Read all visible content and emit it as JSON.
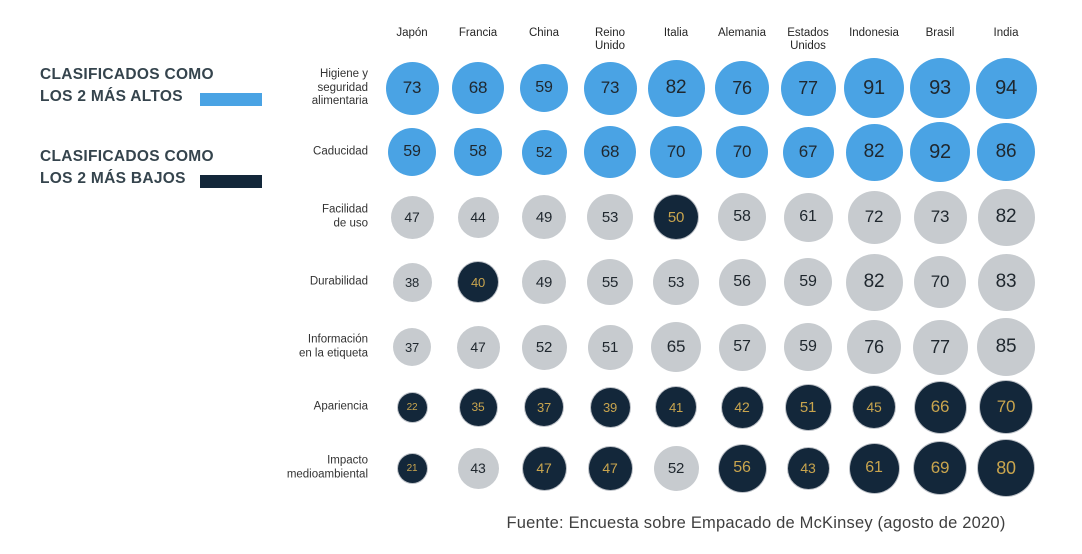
{
  "legend": {
    "entries": [
      {
        "line1": "CLASIFICADOS COMO",
        "line2": "LOS 2 MÁS ALTOS",
        "color": "#4AA3E4",
        "meaning": "high"
      },
      {
        "line1": "CLASIFICADOS COMO",
        "line2": "LOS 2 MÁS BAJOS",
        "color": "#13273A",
        "meaning": "low"
      }
    ]
  },
  "footer": {
    "source": "Fuente: Encuesta sobre Empacado de McKinsey (agosto de 2020)"
  },
  "chart_data": {
    "type": "heatmap",
    "subtype": "bubble-matrix",
    "title": "",
    "legend_position": "left",
    "value_range": [
      0,
      100
    ],
    "size_encoding": "circle diameter proportional to sqrt(value)",
    "categories": [
      "Japón",
      "Francia",
      "China",
      "Reino Unido",
      "Italia",
      "Alemania",
      "Estados Unidos",
      "Indonesia",
      "Brasil",
      "India"
    ],
    "rows": [
      {
        "label": "Higiene y\nseguridad\nalimentaria",
        "values": [
          73,
          68,
          59,
          73,
          82,
          76,
          77,
          91,
          93,
          94
        ],
        "classes": [
          "high",
          "high",
          "high",
          "high",
          "high",
          "high",
          "high",
          "high",
          "high",
          "high"
        ]
      },
      {
        "label": "Caducidad",
        "values": [
          59,
          58,
          52,
          68,
          70,
          70,
          67,
          82,
          92,
          86
        ],
        "classes": [
          "high",
          "high",
          "high",
          "high",
          "high",
          "high",
          "high",
          "high",
          "high",
          "high"
        ]
      },
      {
        "label": "Facilidad\nde uso",
        "values": [
          47,
          44,
          49,
          53,
          50,
          58,
          61,
          72,
          73,
          82
        ],
        "classes": [
          "mid",
          "mid",
          "mid",
          "mid",
          "low",
          "mid",
          "mid",
          "mid",
          "mid",
          "mid"
        ]
      },
      {
        "label": "Durabilidad",
        "values": [
          38,
          40,
          49,
          55,
          53,
          56,
          59,
          82,
          70,
          83
        ],
        "classes": [
          "mid",
          "low",
          "mid",
          "mid",
          "mid",
          "mid",
          "mid",
          "mid",
          "mid",
          "mid"
        ]
      },
      {
        "label": "Información\nen la etiqueta",
        "values": [
          37,
          47,
          52,
          51,
          65,
          57,
          59,
          76,
          77,
          85
        ],
        "classes": [
          "mid",
          "mid",
          "mid",
          "mid",
          "mid",
          "mid",
          "mid",
          "mid",
          "mid",
          "mid"
        ]
      },
      {
        "label": "Apariencia",
        "values": [
          22,
          35,
          37,
          39,
          41,
          42,
          51,
          45,
          66,
          70
        ],
        "classes": [
          "low",
          "low",
          "low",
          "low",
          "low",
          "low",
          "low",
          "low",
          "low",
          "low"
        ]
      },
      {
        "label": "Impacto\nmedioambiental",
        "values": [
          21,
          43,
          47,
          47,
          52,
          56,
          43,
          61,
          69,
          80
        ],
        "classes": [
          "low",
          "mid",
          "low",
          "low",
          "mid",
          "low",
          "low",
          "low",
          "low",
          "low"
        ]
      }
    ],
    "colors": {
      "high": "#4AA3E4",
      "low": "#13273A",
      "mid": "#C7CBCF",
      "text_dark": "#1F272E",
      "text_gold": "#C9A54E"
    }
  }
}
